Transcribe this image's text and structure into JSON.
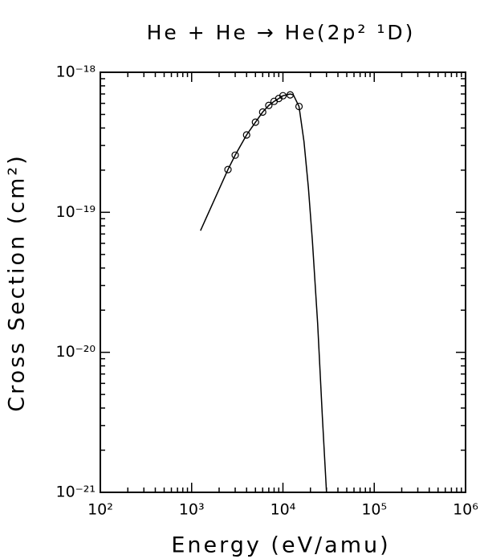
{
  "chart_data": {
    "type": "scatter",
    "title": "He + He → He(2p² ¹D)",
    "x_label": "Energy (eV/amu)",
    "y_label": "Cross Section (cm²)",
    "x_log": true,
    "y_log": true,
    "grid": false,
    "minor_ticks": true,
    "xlim": [
      100,
      1000000
    ],
    "ylim": [
      1e-21,
      1e-18
    ],
    "xticks": [
      {
        "value": 100,
        "label": "10²"
      },
      {
        "value": 1000,
        "label": "10³"
      },
      {
        "value": 10000,
        "label": "10⁴"
      },
      {
        "value": 100000,
        "label": "10⁵"
      },
      {
        "value": 1000000,
        "label": "10⁶"
      }
    ],
    "yticks": [
      {
        "value": 1e-21,
        "label": "10⁻²¹"
      },
      {
        "value": 1e-20,
        "label": "10⁻²⁰"
      },
      {
        "value": 1e-19,
        "label": "10⁻¹⁹"
      },
      {
        "value": 1e-18,
        "label": "10⁻¹⁸"
      }
    ],
    "series": [
      {
        "marker": "circle",
        "color": "#000000",
        "x": [
          2500,
          3000,
          4000,
          5000,
          6000,
          7000,
          8000,
          9000,
          10000,
          12000,
          15000
        ],
        "values": [
          2.02e-19,
          2.56e-19,
          3.57e-19,
          4.4e-19,
          5.2e-19,
          5.8e-19,
          6.2e-19,
          6.5e-19,
          6.8e-19,
          6.9e-19,
          5.7e-19
        ]
      },
      {
        "marker": "line",
        "color": "#000000",
        "x": [
          1250,
          2500,
          3000,
          4000,
          5000,
          6000,
          7000,
          8000,
          9000,
          10000,
          12000,
          13000,
          15000,
          17000,
          19000,
          21000,
          24000,
          27000,
          30000
        ],
        "values": [
          7.4e-20,
          2.02e-19,
          2.56e-19,
          3.57e-19,
          4.4e-19,
          5.2e-19,
          5.8e-19,
          6.2e-19,
          6.5e-19,
          6.8e-19,
          7e-19,
          6.9e-19,
          5.7e-19,
          3.2e-19,
          1.5e-19,
          6.3e-20,
          1.6e-20,
          3.5e-21,
          1e-21
        ]
      }
    ]
  }
}
